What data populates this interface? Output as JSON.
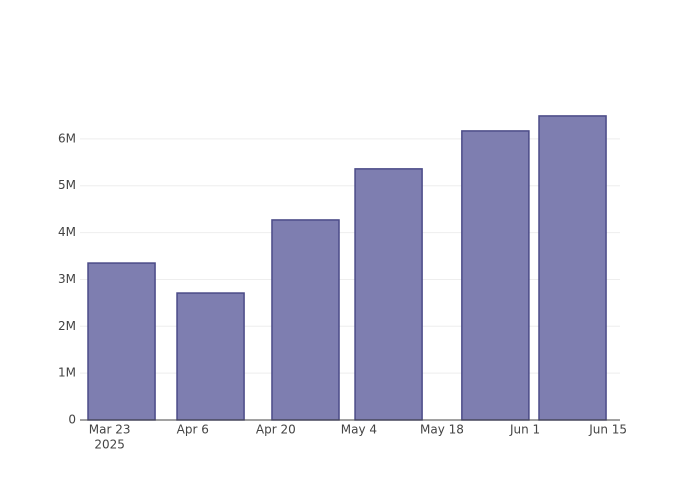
{
  "chart_data": {
    "type": "bar",
    "x": [
      "2025-03-25",
      "2025-04-09",
      "2025-04-25",
      "2025-05-09",
      "2025-05-27",
      "2025-06-09"
    ],
    "values": [
      3350000,
      2710000,
      4270000,
      5360000,
      6170000,
      6490000
    ],
    "color": "#7e7eb0",
    "edge_color": "#4b4b88",
    "bar_width_days": 11.3,
    "xlim": [
      "2025-03-18",
      "2025-06-17"
    ],
    "xticks": [
      {
        "value": "2025-03-23",
        "label": "Mar 23"
      },
      {
        "value": "2025-04-06",
        "label": "Apr 6"
      },
      {
        "value": "2025-04-20",
        "label": "Apr 20"
      },
      {
        "value": "2025-05-04",
        "label": "May 4"
      },
      {
        "value": "2025-05-18",
        "label": "May 18"
      },
      {
        "value": "2025-06-01",
        "label": "Jun 1"
      },
      {
        "value": "2025-06-15",
        "label": "Jun 15"
      }
    ],
    "x_year_label": "2025",
    "ylim": [
      0,
      6830000
    ],
    "yticks": [
      0,
      {
        "value": 1000000,
        "label": "1M"
      },
      {
        "value": 2000000,
        "label": "2M"
      },
      {
        "value": 3000000,
        "label": "3M"
      },
      {
        "value": 4000000,
        "label": "4M"
      },
      {
        "value": 5000000,
        "label": "5M"
      },
      {
        "value": 6000000,
        "label": "6M"
      }
    ],
    "grid": true
  }
}
